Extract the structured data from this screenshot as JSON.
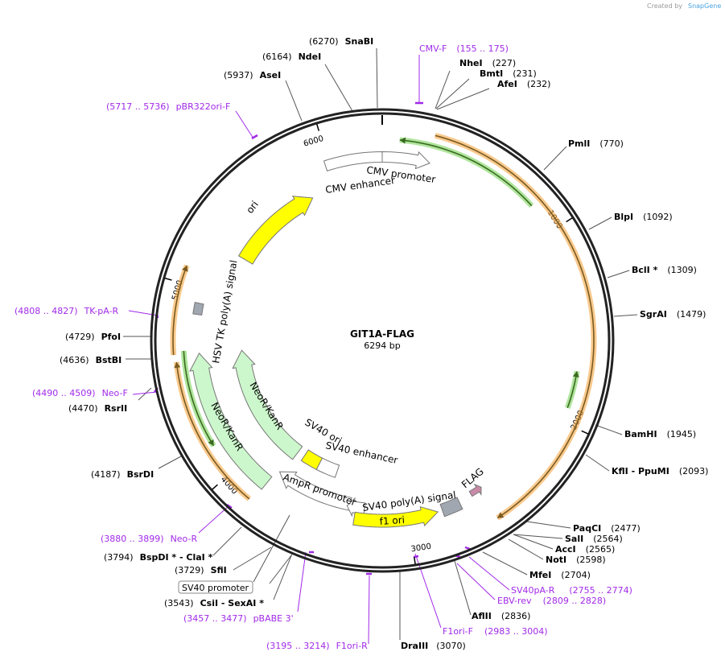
{
  "credit": {
    "created_by": "Created by",
    "brand": "SnapGene"
  },
  "plasmid": {
    "name": "GIT1A-FLAG",
    "length": "6294 bp",
    "total_bp": 6294
  },
  "ticks": [
    "1000",
    "2000",
    "3000",
    "4000",
    "5000",
    "6000"
  ],
  "features": {
    "cmv_promoter": "CMV promoter",
    "cmv_enhancer": "CMV enhancer",
    "ori": "ori",
    "hsv_tk": "HSV TK poly(A) signal",
    "neo1": "NeoR/KanR",
    "neo2": "NeoR/KanR",
    "sv40_ori": "SV40 ori",
    "sv40_enh": "SV40 enhancer",
    "ampr_prom": "AmpR promoter",
    "sv40_pa": "SV40 poly(A) signal",
    "f1_ori": "f1 ori",
    "flag": "FLAG",
    "sv40_promoter": "SV40 promoter"
  },
  "colors": {
    "orange": "#f5a742",
    "green": "#7ad35a",
    "yellow": "#ffff00",
    "neo": "#ccf7cc",
    "grey": "#a0a7b0",
    "flag": "#c98aa8",
    "primer": "#a12ae8"
  },
  "enzymes": [
    {
      "name": "SnaBI",
      "pos": "(6270)"
    },
    {
      "name": "NdeI",
      "pos": "(6164)"
    },
    {
      "name": "AseI",
      "pos": "(5937)"
    },
    {
      "name": "NheI",
      "pos": "(227)"
    },
    {
      "name": "BmtI",
      "pos": "(231)"
    },
    {
      "name": "AfeI",
      "pos": "(232)"
    },
    {
      "name": "PmlI",
      "pos": "(770)"
    },
    {
      "name": "BlpI",
      "pos": "(1092)"
    },
    {
      "name": "BclI *",
      "pos": "(1309)"
    },
    {
      "name": "SgrAI",
      "pos": "(1479)"
    },
    {
      "name": "BamHI",
      "pos": "(1945)"
    },
    {
      "name": "KflI  - PpuMI",
      "pos": "(2093)"
    },
    {
      "name": "PaqCI",
      "pos": "(2477)"
    },
    {
      "name": "SalI",
      "pos": "(2564)"
    },
    {
      "name": "AccI",
      "pos": "(2565)"
    },
    {
      "name": "NotI",
      "pos": "(2598)"
    },
    {
      "name": "MfeI",
      "pos": "(2704)"
    },
    {
      "name": "AflII",
      "pos": "(2836)"
    },
    {
      "name": "DraIII",
      "pos": "(3070)"
    },
    {
      "name": "CsiI   - SexAI *",
      "pos": "(3543)"
    },
    {
      "name": "SfiI",
      "pos": "(3729)"
    },
    {
      "name": "BspDI *  - ClaI *",
      "pos": "(3794)"
    },
    {
      "name": "BsrDI",
      "pos": "(4187)"
    },
    {
      "name": "RsrII",
      "pos": "(4470)"
    },
    {
      "name": "BstBI",
      "pos": "(4636)"
    },
    {
      "name": "PfoI",
      "pos": "(4729)"
    }
  ],
  "primers": [
    {
      "name": "CMV-F",
      "range": "(155 .. 175)"
    },
    {
      "name": "pBR322ori-F",
      "range": "(5717 .. 5736)"
    },
    {
      "name": "SV40pA-R",
      "range": "(2755 .. 2774)"
    },
    {
      "name": "EBV-rev",
      "range": "(2809 .. 2828)"
    },
    {
      "name": "F1ori-F",
      "range": "(2983 .. 3004)"
    },
    {
      "name": "F1ori-R",
      "range": "(3195 .. 3214)"
    },
    {
      "name": "pBABE 3'",
      "range": "(3457 .. 3477)"
    },
    {
      "name": "Neo-R",
      "range": "(3880 .. 3899)"
    },
    {
      "name": "Neo-F",
      "range": "(4490 .. 4509)"
    },
    {
      "name": "TK-pA-R",
      "range": "(4808 .. 4827)"
    }
  ]
}
